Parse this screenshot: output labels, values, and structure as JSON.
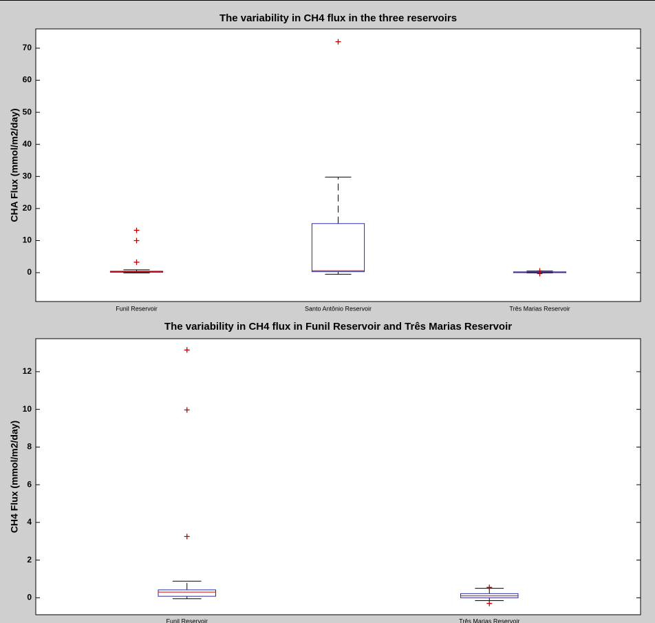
{
  "chart_data": [
    {
      "type": "box",
      "title": "The variability in CH4 flux in the three reservoirs",
      "y_label": "CHA Flux (mmol/m2/day)",
      "categories": [
        "Funil Reservoir",
        "Santo Antônio Reservoir",
        "Três Marias Reservoir"
      ],
      "boxes": [
        {
          "low": -0.1,
          "q1": 0.1,
          "median": 0.3,
          "q3": 0.45,
          "high": 0.9,
          "outliers": [
            3.25,
            10,
            13.2
          ]
        },
        {
          "low": -0.5,
          "q1": 0.3,
          "median": 0.6,
          "q3": 15.3,
          "high": 29.8,
          "outliers": [
            72
          ]
        },
        {
          "low": -0.1,
          "q1": 0.0,
          "median": 0.1,
          "q3": 0.25,
          "high": 0.5,
          "outliers": [
            0.55,
            -0.3
          ]
        }
      ],
      "ylim": [
        -9,
        76
      ],
      "yticks": [
        0,
        10,
        20,
        30,
        40,
        50,
        60,
        70
      ],
      "box_color": "#2a2aa0",
      "median_color": "#d00000",
      "outlier_color": "#c00000"
    },
    {
      "type": "box",
      "title": "The variability in CH4 flux in Funil Reservoir and Três Marias Reservoir",
      "y_label": "CH4 Flux (mmol/m2/day)",
      "categories": [
        "Funil Reservoir",
        "Três Marias Reservoir"
      ],
      "boxes": [
        {
          "low": -0.05,
          "q1": 0.08,
          "median": 0.3,
          "q3": 0.42,
          "high": 0.88,
          "outliers": [
            3.25,
            9.97,
            13.15
          ]
        },
        {
          "low": -0.15,
          "q1": 0.0,
          "median": 0.1,
          "q3": 0.22,
          "high": 0.5,
          "outliers": [
            0.55,
            -0.3
          ]
        }
      ],
      "ylim": [
        -0.9,
        13.75
      ],
      "yticks": [
        0,
        2,
        4,
        6,
        8,
        10,
        12
      ],
      "box_color": "#2a2aa0",
      "median_color": "#d00000",
      "outlier_color": "#c00000"
    }
  ]
}
